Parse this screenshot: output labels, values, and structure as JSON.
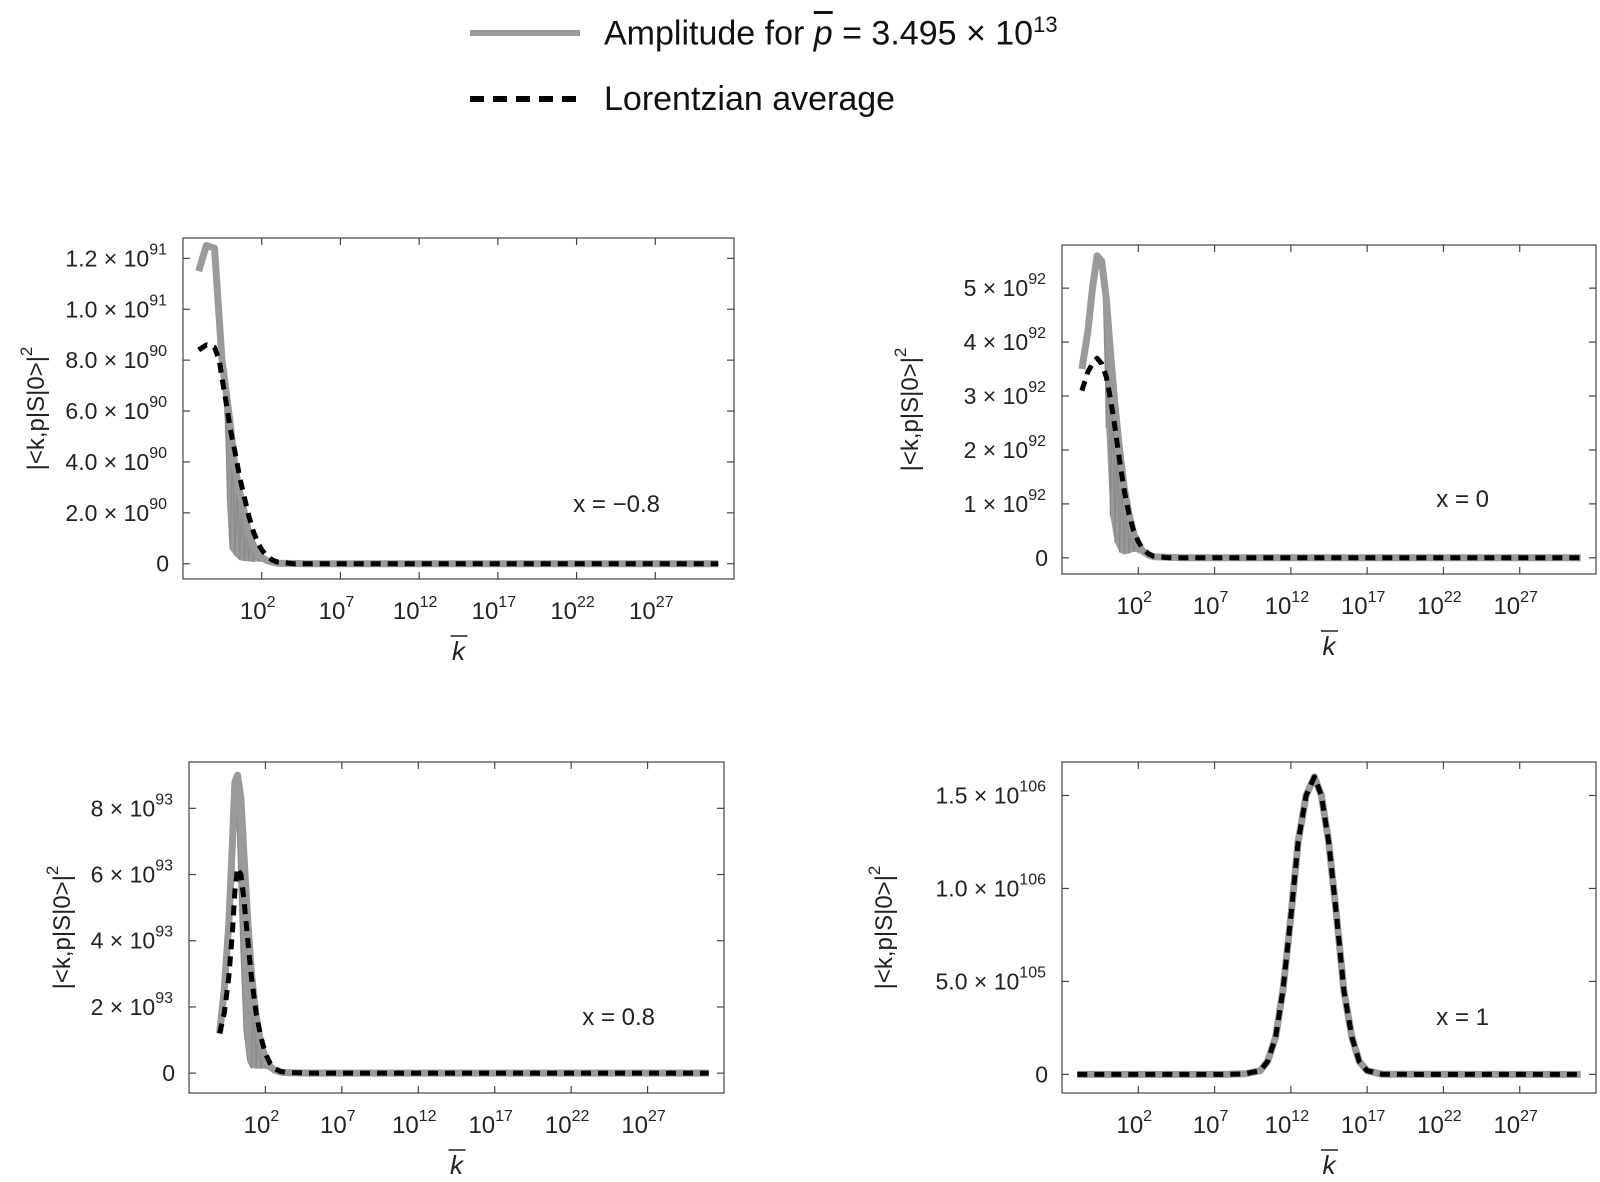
{
  "legend": {
    "amplitude": {
      "prefix": "Amplitude for ",
      "symbol": "p",
      "equals": " = 3.495 × 10",
      "exp": "13",
      "color": "#9a9a9a",
      "style": "solid"
    },
    "lorentzian": {
      "text": "Lorentzian average",
      "color": "#000000",
      "style": "dashed"
    }
  },
  "chart_data": [
    {
      "type": "line",
      "x_scale": "log",
      "xlabel": "k",
      "xlabel_overline": true,
      "ylabel": "|<k,p|S|0>|",
      "ylabel_sup": "2",
      "annotation": "x = −0.8",
      "x_ticks": [
        {
          "base": "10",
          "exp": "2",
          "value": 100
        },
        {
          "base": "10",
          "exp": "7",
          "value": 10000000.0
        },
        {
          "base": "10",
          "exp": "12",
          "value": 1000000000000.0
        },
        {
          "base": "10",
          "exp": "17",
          "value": 1e+17
        },
        {
          "base": "10",
          "exp": "22",
          "value": 1e+22
        },
        {
          "base": "10",
          "exp": "27",
          "value": 1e+27
        }
      ],
      "y_ticks": [
        {
          "text": "0",
          "value": 0
        },
        {
          "text": "2.0 × 10",
          "exp": "90",
          "value": 2e+90
        },
        {
          "text": "4.0 × 10",
          "exp": "90",
          "value": 4e+90
        },
        {
          "text": "6.0 × 10",
          "exp": "90",
          "value": 6e+90
        },
        {
          "text": "8.0 × 10",
          "exp": "90",
          "value": 8e+90
        },
        {
          "text": "1.0 × 10",
          "exp": "91",
          "value": 1e+91
        },
        {
          "text": "1.2 × 10",
          "exp": "91",
          "value": 1.2e+91
        }
      ],
      "xlim": [
        0.001,
        1e+32
      ],
      "ylim": [
        -6e+89,
        1.28e+91
      ],
      "series": [
        {
          "x": [
            0.01,
            0.03,
            0.1,
            0.3,
            1,
            2,
            4,
            8,
            15,
            30,
            60,
            100,
            200,
            500,
            1000,
            100000.0,
            1e+31
          ],
          "y": [
            1.15e+91,
            1.25e+91,
            1.24e+91,
            8e+90,
            5.5e+90,
            3.8e+90,
            2.8e+90,
            2e+90,
            1.2e+90,
            7e+89,
            4e+89,
            2.5e+89,
            1.3e+89,
            6e+88,
            2e+88,
            0,
            0
          ],
          "band": [
            0,
            0,
            0,
            0,
            0.9,
            0.92,
            0.95,
            0.95,
            0.92,
            0.9,
            0.75,
            0.6,
            0.4,
            0.2,
            0.1,
            0,
            0
          ]
        },
        {
          "x": [
            0.01,
            0.03,
            0.1,
            0.2,
            0.3,
            0.6,
            1,
            2,
            4,
            8,
            15,
            30,
            60,
            100,
            200,
            500,
            1000,
            10000.0,
            1e+31
          ],
          "y": [
            8.4e+90,
            8.6e+90,
            8.5e+90,
            8e+90,
            7.3e+90,
            6.2e+90,
            5.3e+90,
            4.4e+90,
            3.4e+90,
            2.6e+90,
            1.9e+90,
            1.25e+90,
            8e+89,
            5.5e+89,
            3.2e+89,
            1.4e+89,
            7e+88,
            0,
            0
          ]
        }
      ]
    },
    {
      "type": "line",
      "x_scale": "log",
      "xlabel": "k",
      "xlabel_overline": true,
      "ylabel": "|<k,p|S|0>|",
      "ylabel_sup": "2",
      "annotation": "x = 0",
      "x_ticks": [
        {
          "base": "10",
          "exp": "2",
          "value": 100
        },
        {
          "base": "10",
          "exp": "7",
          "value": 10000000.0
        },
        {
          "base": "10",
          "exp": "12",
          "value": 1000000000000.0
        },
        {
          "base": "10",
          "exp": "17",
          "value": 1e+17
        },
        {
          "base": "10",
          "exp": "22",
          "value": 1e+22
        },
        {
          "base": "10",
          "exp": "27",
          "value": 1e+27
        }
      ],
      "y_ticks": [
        {
          "text": "0",
          "value": 0
        },
        {
          "text": "1 × 10",
          "exp": "92",
          "value": 1e+92
        },
        {
          "text": "2 × 10",
          "exp": "92",
          "value": 2e+92
        },
        {
          "text": "3 × 10",
          "exp": "92",
          "value": 3e+92
        },
        {
          "text": "4 × 10",
          "exp": "92",
          "value": 4e+92
        },
        {
          "text": "5 × 10",
          "exp": "92",
          "value": 5e+92
        }
      ],
      "xlim": [
        0.001,
        1e+32
      ],
      "ylim": [
        -3e+91,
        5.8e+92
      ],
      "series": [
        {
          "x": [
            0.02,
            0.05,
            0.1,
            0.2,
            0.4,
            0.8,
            1.5,
            3,
            6,
            12,
            25,
            50,
            100,
            200,
            500,
            1000,
            100000.0,
            1e+31
          ],
          "y": [
            3.5e+92,
            4.2e+92,
            5e+92,
            5.6e+92,
            5.5e+92,
            4.8e+92,
            3.8e+92,
            2.8e+92,
            2e+92,
            1.3e+92,
            8e+91,
            4.5e+91,
            2.5e+91,
            1.2e+91,
            5e+90,
            2e+90,
            0,
            0
          ],
          "band": [
            0,
            0,
            0,
            0,
            0,
            0.5,
            0.8,
            0.9,
            0.95,
            0.95,
            0.9,
            0.75,
            0.6,
            0.4,
            0.2,
            0.1,
            0,
            0
          ]
        },
        {
          "x": [
            0.02,
            0.05,
            0.1,
            0.2,
            0.4,
            0.8,
            1.5,
            3,
            6,
            12,
            25,
            50,
            100,
            200,
            500,
            1000,
            10000.0,
            1e+31
          ],
          "y": [
            3.1e+92,
            3.45e+92,
            3.6e+92,
            3.7e+92,
            3.6e+92,
            3.35e+92,
            2.95e+92,
            2.4e+92,
            1.8e+92,
            1.25e+92,
            8e+91,
            5e+91,
            3e+91,
            1.6e+91,
            7e+90,
            3e+90,
            0,
            0
          ]
        }
      ]
    },
    {
      "type": "line",
      "x_scale": "log",
      "xlabel": "k",
      "xlabel_overline": true,
      "ylabel": "|<k,p|S|0>|",
      "ylabel_sup": "2",
      "annotation": "x = 0.8",
      "x_ticks": [
        {
          "base": "10",
          "exp": "2",
          "value": 100
        },
        {
          "base": "10",
          "exp": "7",
          "value": 10000000.0
        },
        {
          "base": "10",
          "exp": "12",
          "value": 1000000000000.0
        },
        {
          "base": "10",
          "exp": "17",
          "value": 1e+17
        },
        {
          "base": "10",
          "exp": "22",
          "value": 1e+22
        },
        {
          "base": "10",
          "exp": "27",
          "value": 1e+27
        }
      ],
      "y_ticks": [
        {
          "text": "0",
          "value": 0
        },
        {
          "text": "2 × 10",
          "exp": "93",
          "value": 2e+93
        },
        {
          "text": "4 × 10",
          "exp": "93",
          "value": 4e+93
        },
        {
          "text": "6 × 10",
          "exp": "93",
          "value": 6e+93
        },
        {
          "text": "8 × 10",
          "exp": "93",
          "value": 8e+93
        }
      ],
      "xlim": [
        0.001,
        1e+32
      ],
      "ylim": [
        -6e+92,
        9.4e+93
      ],
      "series": [
        {
          "x": [
            0.1,
            0.2,
            0.4,
            0.7,
            1,
            1.5,
            2.5,
            4,
            7,
            12,
            25,
            50,
            100,
            200,
            400,
            1000,
            3000,
            100000.0,
            1e+31
          ],
          "y": [
            1.2e+93,
            2.5e+93,
            4.5e+93,
            7e+93,
            8.8e+93,
            9e+93,
            8.3e+93,
            6.5e+93,
            4.6e+93,
            3e+93,
            1.7e+93,
            9e+92,
            4.5e+92,
            2e+92,
            9e+91,
            3e+91,
            1e+91,
            0,
            0
          ],
          "band": [
            0,
            0,
            0,
            0,
            0,
            0.2,
            0.55,
            0.8,
            0.92,
            0.95,
            0.92,
            0.85,
            0.7,
            0.55,
            0.35,
            0.2,
            0.1,
            0,
            0
          ]
        },
        {
          "x": [
            0.1,
            0.2,
            0.4,
            0.7,
            1,
            1.5,
            2.5,
            4,
            7,
            12,
            25,
            50,
            100,
            200,
            400,
            1000,
            3000,
            100000.0,
            1e+31
          ],
          "y": [
            1.2e+93,
            1.8e+93,
            2.9e+93,
            4.3e+93,
            5.5e+93,
            6.2e+93,
            6e+93,
            5.2e+93,
            4e+93,
            2.9e+93,
            1.8e+93,
            1.1e+93,
            6e+92,
            3e+92,
            1.4e+92,
            5e+91,
            1.5e+91,
            0,
            0
          ]
        }
      ]
    },
    {
      "type": "line",
      "x_scale": "log",
      "xlabel": "k",
      "xlabel_overline": true,
      "ylabel": "|<k,p|S|0>|",
      "ylabel_sup": "2",
      "annotation": "x = 1",
      "x_ticks": [
        {
          "base": "10",
          "exp": "2",
          "value": 100
        },
        {
          "base": "10",
          "exp": "7",
          "value": 10000000.0
        },
        {
          "base": "10",
          "exp": "12",
          "value": 1000000000000.0
        },
        {
          "base": "10",
          "exp": "17",
          "value": 1e+17
        },
        {
          "base": "10",
          "exp": "22",
          "value": 1e+22
        },
        {
          "base": "10",
          "exp": "27",
          "value": 1e+27
        }
      ],
      "y_ticks": [
        {
          "text": "0",
          "value": 0
        },
        {
          "text": "5.0 × 10",
          "exp": "105",
          "value": 5e+105
        },
        {
          "text": "1.0 × 10",
          "exp": "106",
          "value": 1e+106
        },
        {
          "text": "1.5 × 10",
          "exp": "106",
          "value": 1.5e+106
        }
      ],
      "xlim": [
        0.001,
        1e+32
      ],
      "ylim": [
        -1e+105,
        1.68e+106
      ],
      "series": [
        {
          "x": [
            0.01,
            1000000.0,
            100000000.0,
            1000000000.0,
            10000000000.0,
            30000000000.0,
            100000000000.0,
            300000000000.0,
            1000000000000.0,
            3000000000000.0,
            10000000000000.0,
            35000000000000.0,
            100000000000000.0,
            300000000000000.0,
            1000000000000000.0,
            3000000000000000.0,
            1e+16,
            3e+16,
            1e+17,
            1e+18,
            1e+31
          ],
          "y": [
            0,
            0,
            5e+102,
            3e+103,
            2e+104,
            7e+104,
            2e+105,
            4.5e+105,
            8.5e+105,
            1.25e+106,
            1.5e+106,
            1.6e+106,
            1.5e+106,
            1.25e+106,
            8.5e+105,
            4.5e+105,
            2e+105,
            7e+104,
            2e+104,
            5e+102,
            0
          ]
        },
        {
          "x": [
            0.01,
            1000000.0,
            100000000.0,
            1000000000.0,
            10000000000.0,
            30000000000.0,
            100000000000.0,
            300000000000.0,
            1000000000000.0,
            3000000000000.0,
            10000000000000.0,
            35000000000000.0,
            100000000000000.0,
            300000000000000.0,
            1000000000000000.0,
            3000000000000000.0,
            1e+16,
            3e+16,
            1e+17,
            1e+18,
            1e+31
          ],
          "y": [
            0,
            0,
            5e+102,
            3e+103,
            2e+104,
            7e+104,
            2e+105,
            4.5e+105,
            8.5e+105,
            1.25e+106,
            1.5e+106,
            1.6e+106,
            1.5e+106,
            1.25e+106,
            8.5e+105,
            4.5e+105,
            2e+105,
            7e+104,
            2e+104,
            5e+102,
            0
          ]
        }
      ]
    }
  ]
}
